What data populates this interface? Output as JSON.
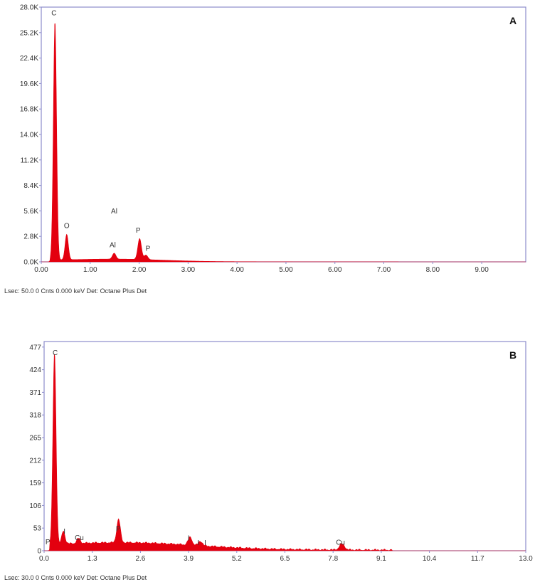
{
  "colors": {
    "spectrum": "#e3000f",
    "frame": "#8c8ccc",
    "text": "#333333"
  },
  "chart_data": [
    {
      "type": "area",
      "panel_label": "A",
      "xlim": [
        0,
        9.9
      ],
      "ylim": [
        0,
        28000
      ],
      "x_ticks": [
        "0.00",
        "1.00",
        "2.00",
        "3.00",
        "4.00",
        "5.00",
        "6.00",
        "7.00",
        "8.00",
        "9.00"
      ],
      "y_ticks": [
        "0.0K",
        "2.8K",
        "5.6K",
        "8.4K",
        "11.2K",
        "14.0K",
        "16.8K",
        "19.6K",
        "22.4K",
        "25.2K",
        "28.0K"
      ],
      "peaks": [
        {
          "element": "C",
          "energy": 0.28,
          "counts": 26200
        },
        {
          "element": "O",
          "energy": 0.52,
          "counts": 2800
        },
        {
          "element": "Al",
          "energy": 1.49,
          "counts": 650
        },
        {
          "element": "P",
          "energy": 2.01,
          "counts": 2300
        },
        {
          "element": "P",
          "energy": 2.14,
          "counts": 500
        }
      ],
      "peak_labels": [
        {
          "text": "C",
          "x": 0.26,
          "y": 27100
        },
        {
          "text": "O",
          "x": 0.52,
          "y": 3700
        },
        {
          "text": "Al",
          "x": 1.46,
          "y": 1600
        },
        {
          "text": "Al",
          "x": 1.49,
          "y": 5300
        },
        {
          "text": "P",
          "x": 1.98,
          "y": 3200
        },
        {
          "text": "P",
          "x": 2.18,
          "y": 1200
        }
      ],
      "footer": "Lsec: 50.0 0 Cnts  0.000 keV Det: Octane Plus Det"
    },
    {
      "type": "area",
      "panel_label": "B",
      "xlim": [
        0,
        13.0
      ],
      "ylim": [
        0,
        490
      ],
      "x_ticks": [
        "0.0",
        "1.3",
        "2.6",
        "3.9",
        "5.2",
        "6.5",
        "7.8",
        "9.1",
        "10.4",
        "11.7",
        "13.0"
      ],
      "y_ticks": [
        "0",
        "53",
        "106",
        "159",
        "212",
        "265",
        "318",
        "371",
        "424",
        "477"
      ],
      "peaks": [
        {
          "element": "C",
          "energy": 0.28,
          "counts": 448
        },
        {
          "element": "I",
          "energy": 0.52,
          "counts": 30
        },
        {
          "element": "Cu",
          "energy": 0.93,
          "counts": 12
        },
        {
          "element": "P",
          "energy": 2.01,
          "counts": 55
        },
        {
          "element": "I",
          "energy": 3.94,
          "counts": 18
        },
        {
          "element": "I",
          "energy": 4.22,
          "counts": 10
        },
        {
          "element": "Cu",
          "energy": 8.04,
          "counts": 14
        }
      ],
      "peak_labels": [
        {
          "text": "C",
          "x": 0.3,
          "y": 458
        },
        {
          "text": "P",
          "x": 0.1,
          "y": 15
        },
        {
          "text": "I",
          "x": 0.55,
          "y": 40
        },
        {
          "text": "Cu",
          "x": 0.95,
          "y": 25
        },
        {
          "text": "P",
          "x": 2.0,
          "y": 46
        },
        {
          "text": "I",
          "x": 3.9,
          "y": 24
        },
        {
          "text": "I",
          "x": 4.16,
          "y": 13
        },
        {
          "text": "I",
          "x": 4.35,
          "y": 13
        },
        {
          "text": "Cu",
          "x": 8.0,
          "y": 14
        }
      ],
      "footer": "Lsec: 30.0 0 Cnts  0.000 keV Det: Octane Plus Det"
    }
  ]
}
